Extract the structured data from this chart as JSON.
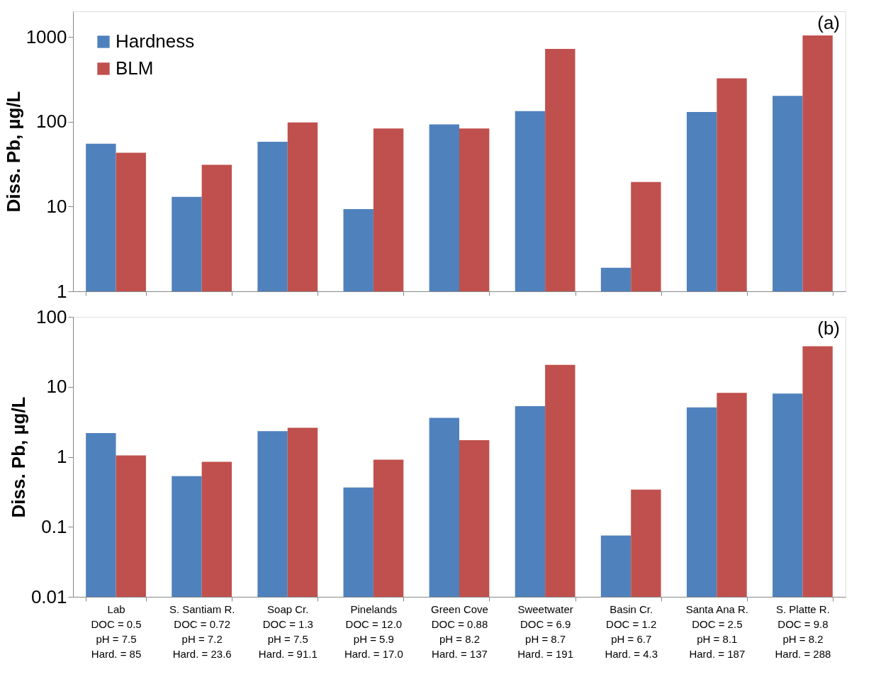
{
  "chart_data": [
    {
      "type": "bar",
      "ylabel": "Diss. Pb, µg/L",
      "annotations": [
        "(a)"
      ],
      "log": true,
      "ylim": [
        1,
        2000
      ],
      "yticks": [
        1,
        10,
        100,
        1000
      ],
      "legend": "top left",
      "tick_labels": "y",
      "categories": [
        null,
        null,
        null,
        null,
        null,
        null,
        null,
        null,
        null
      ],
      "series": [
        {
          "name": "Hardness",
          "color": "#4f81bd",
          "values": [
            55,
            13,
            58,
            9.3,
            93,
            133,
            1.9,
            130,
            202
          ]
        },
        {
          "name": "BLM",
          "color": "#c0504d",
          "values": [
            43,
            31,
            98,
            83,
            83,
            720,
            19.5,
            325,
            1040
          ]
        }
      ]
    },
    {
      "type": "bar",
      "ylabel": "Diss. Pb, µg/L",
      "annotations": [
        "(b)"
      ],
      "log": true,
      "ylim": [
        0.01,
        100
      ],
      "yticks": [
        0.01,
        0.1,
        1,
        10,
        100
      ],
      "categories": [
        "Lab\nDOC = 0.5\npH = 7.5\nHard. = 85",
        "S. Santiam R.\nDOC = 0.72\npH = 7.2\nHard. = 23.6",
        "Soap Cr.\nDOC = 1.3\npH = 7.5\nHard. = 91.1",
        "Pinelands\nDOC = 12.0\npH = 5.9\nHard. = 17.0",
        "Green Cove\nDOC = 0.88\npH = 8.2\nHard. = 137",
        "Sweetwater\nDOC = 6.9\npH = 8.7\nHard. = 191",
        "Basin Cr.\nDOC = 1.2\npH = 6.7\nHard. = 4.3",
        "Santa Ana R.\nDOC = 2.5\npH = 8.1\nHard. = 187",
        "S. Platte R.\nDOC = 9.8\npH = 8.2\nHard. = 288"
      ],
      "series": [
        {
          "name": "Hardness",
          "color": "#4f81bd",
          "values": [
            2.18,
            0.53,
            2.33,
            0.365,
            3.6,
            5.3,
            0.075,
            5.1,
            8.0
          ]
        },
        {
          "name": "BLM",
          "color": "#c0504d",
          "values": [
            1.05,
            0.85,
            2.6,
            0.91,
            1.73,
            20.6,
            0.34,
            8.2,
            38
          ]
        }
      ]
    }
  ]
}
